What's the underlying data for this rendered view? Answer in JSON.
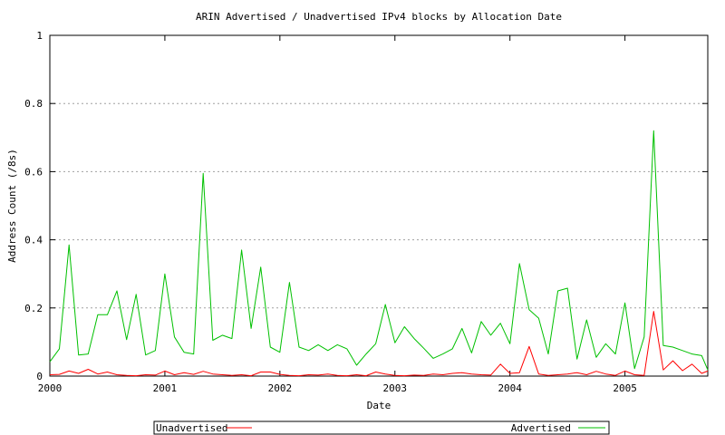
{
  "chart_data": {
    "type": "line",
    "title": "ARIN Advertised / Unadvertised IPv4 blocks by Allocation Date",
    "xlabel": "Date",
    "ylabel": "Address Count (/8s)",
    "xlim": [
      2000.0,
      2005.72
    ],
    "ylim": [
      0,
      1
    ],
    "x_ticks": [
      2000,
      2001,
      2002,
      2003,
      2004,
      2005
    ],
    "x_tick_labels": [
      "2000",
      "2001",
      "2002",
      "2003",
      "2004",
      "2005"
    ],
    "y_ticks": [
      0,
      0.2,
      0.4,
      0.6,
      0.8,
      1
    ],
    "y_tick_labels": [
      "0",
      "0.2",
      "0.4",
      "0.6",
      "0.8",
      "1"
    ],
    "grid": "horizontal dotted",
    "legend_position": "bottom",
    "series": [
      {
        "name": "Unadvertised",
        "color": "#ff0000",
        "x": [
          2000.0,
          2000.083,
          2000.167,
          2000.25,
          2000.333,
          2000.417,
          2000.5,
          2000.583,
          2000.667,
          2000.75,
          2000.833,
          2000.917,
          2001.0,
          2001.083,
          2001.167,
          2001.25,
          2001.333,
          2001.417,
          2001.5,
          2001.583,
          2001.667,
          2001.75,
          2001.833,
          2001.917,
          2002.0,
          2002.083,
          2002.167,
          2002.25,
          2002.333,
          2002.417,
          2002.5,
          2002.583,
          2002.667,
          2002.75,
          2002.833,
          2002.917,
          2003.0,
          2003.083,
          2003.167,
          2003.25,
          2003.333,
          2003.417,
          2003.5,
          2003.583,
          2003.667,
          2003.75,
          2003.833,
          2003.917,
          2004.0,
          2004.083,
          2004.167,
          2004.25,
          2004.333,
          2004.417,
          2004.5,
          2004.583,
          2004.667,
          2004.75,
          2004.833,
          2004.917,
          2005.0,
          2005.083,
          2005.167,
          2005.25,
          2005.333,
          2005.417,
          2005.5,
          2005.583,
          2005.667,
          2005.72
        ],
        "values": [
          0.004,
          0.005,
          0.015,
          0.008,
          0.02,
          0.006,
          0.012,
          0.004,
          0.002,
          0.001,
          0.004,
          0.003,
          0.015,
          0.004,
          0.01,
          0.005,
          0.014,
          0.006,
          0.004,
          0.002,
          0.004,
          0.001,
          0.012,
          0.012,
          0.005,
          0.002,
          0.001,
          0.004,
          0.003,
          0.006,
          0.002,
          0.001,
          0.004,
          0.001,
          0.012,
          0.006,
          0.002,
          0.001,
          0.003,
          0.002,
          0.006,
          0.004,
          0.008,
          0.01,
          0.006,
          0.004,
          0.003,
          0.035,
          0.008,
          0.01,
          0.087,
          0.006,
          0.002,
          0.004,
          0.006,
          0.01,
          0.004,
          0.014,
          0.006,
          0.002,
          0.015,
          0.004,
          0.002,
          0.19,
          0.018,
          0.045,
          0.016,
          0.035,
          0.008,
          0.015
        ]
      },
      {
        "name": "Advertised",
        "color": "#00c000",
        "x": [
          2000.0,
          2000.083,
          2000.167,
          2000.25,
          2000.333,
          2000.417,
          2000.5,
          2000.583,
          2000.667,
          2000.75,
          2000.833,
          2000.917,
          2001.0,
          2001.083,
          2001.167,
          2001.25,
          2001.333,
          2001.417,
          2001.5,
          2001.583,
          2001.667,
          2001.75,
          2001.833,
          2001.917,
          2002.0,
          2002.083,
          2002.167,
          2002.25,
          2002.333,
          2002.417,
          2002.5,
          2002.583,
          2002.667,
          2002.75,
          2002.833,
          2002.917,
          2003.0,
          2003.083,
          2003.167,
          2003.25,
          2003.333,
          2003.417,
          2003.5,
          2003.583,
          2003.667,
          2003.75,
          2003.833,
          2003.917,
          2004.0,
          2004.083,
          2004.167,
          2004.25,
          2004.333,
          2004.417,
          2004.5,
          2004.583,
          2004.667,
          2004.75,
          2004.833,
          2004.917,
          2005.0,
          2005.083,
          2005.167,
          2005.25,
          2005.333,
          2005.417,
          2005.5,
          2005.583,
          2005.667,
          2005.72
        ],
        "values": [
          0.042,
          0.08,
          0.385,
          0.062,
          0.065,
          0.18,
          0.18,
          0.25,
          0.107,
          0.24,
          0.062,
          0.075,
          0.3,
          0.115,
          0.07,
          0.065,
          0.595,
          0.105,
          0.12,
          0.11,
          0.37,
          0.14,
          0.32,
          0.085,
          0.07,
          0.275,
          0.085,
          0.075,
          0.092,
          0.075,
          0.092,
          0.08,
          0.032,
          0.065,
          0.095,
          0.21,
          0.098,
          0.145,
          0.11,
          0.082,
          0.052,
          0.065,
          0.08,
          0.14,
          0.068,
          0.16,
          0.12,
          0.155,
          0.095,
          0.33,
          0.195,
          0.17,
          0.065,
          0.25,
          0.258,
          0.05,
          0.165,
          0.055,
          0.095,
          0.065,
          0.215,
          0.022,
          0.115,
          0.72,
          0.09,
          0.085,
          0.075,
          0.065,
          0.06,
          0.018
        ]
      }
    ]
  }
}
